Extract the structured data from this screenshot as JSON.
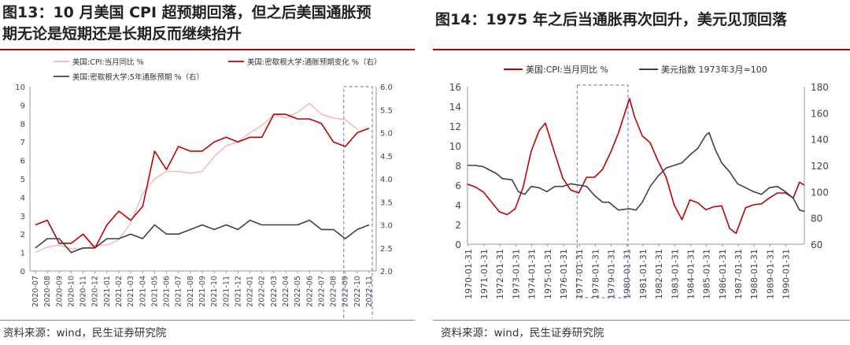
{
  "left": {
    "title_line1": "图13：10 月美国 CPI 超预期回落，但之后美国通胀预",
    "title_line2": "期无论是短期还是长期反而继续抬升",
    "source": "资料来源：wind，民生证券研究院"
  },
  "right": {
    "title": "图14：1975 年之后当通胀再次回升，美元见顶回落",
    "source": "资料来源：wind，民生证券研究院"
  },
  "colors": {
    "title_rule": "#c00000",
    "cpi_light": "#f0b6b8",
    "red_series": "#c00000",
    "dark_series": "#404040",
    "highlight_box": "#6b8fc6"
  },
  "chart_data": [
    {
      "type": "line",
      "categories": [
        "2020-07",
        "2020-08",
        "2020-09",
        "2020-10",
        "2020-11",
        "2020-12",
        "2021-01",
        "2021-02",
        "2021-03",
        "2021-04",
        "2021-05",
        "2021-06",
        "2021-07",
        "2021-08",
        "2021-09",
        "2021-10",
        "2021-11",
        "2021-12",
        "2022-01",
        "2022-02",
        "2022-03",
        "2022-04",
        "2022-05",
        "2022-06",
        "2022-07",
        "2022-08",
        "2022-09",
        "2022-10",
        "2022-11"
      ],
      "xticks": [
        "2020-07",
        "2020-08",
        "2020-09",
        "2020-10",
        "2020-11",
        "2020-12",
        "2021-01",
        "2021-02",
        "2021-03",
        "2021-04",
        "2021-05",
        "2021-06",
        "2021-07",
        "2021-08",
        "2021-09",
        "2021-10",
        "2021-11",
        "2021-12",
        "2022-01",
        "2022-02",
        "2022-03",
        "2022-04",
        "2022-05",
        "2022-06",
        "2022-07",
        "2022-08",
        "2022-09",
        "2022-10",
        "2022-11"
      ],
      "ylim": [
        0,
        10
      ],
      "yticks": [
        0,
        1,
        2,
        3,
        4,
        5,
        6,
        7,
        8,
        9,
        10
      ],
      "ylim_right": [
        2.0,
        6.0
      ],
      "yticks_right": [
        "2.0",
        "2.5",
        "3.0",
        "3.5",
        "4.0",
        "4.5",
        "5.0",
        "5.5",
        "6.0"
      ],
      "series": [
        {
          "name": "美国:CPI:当月同比 %",
          "axis": "left",
          "color": "#f0b6b8",
          "values": [
            1.0,
            1.3,
            1.4,
            1.2,
            1.2,
            1.4,
            1.4,
            1.7,
            2.6,
            4.2,
            5.0,
            5.4,
            5.4,
            5.3,
            5.4,
            6.2,
            6.8,
            7.0,
            7.5,
            7.9,
            8.5,
            8.3,
            8.6,
            9.1,
            8.5,
            8.3,
            8.2,
            7.7,
            null
          ]
        },
        {
          "name": "美国:密歇根大学:通胀预期变化 %（右）",
          "axis": "right",
          "color": "#c00000",
          "values": [
            3.0,
            3.1,
            2.6,
            2.6,
            2.8,
            2.5,
            3.0,
            3.3,
            3.1,
            3.4,
            4.6,
            4.2,
            4.7,
            4.6,
            4.6,
            4.8,
            4.9,
            4.8,
            4.9,
            4.9,
            5.4,
            5.4,
            5.3,
            5.3,
            5.2,
            4.8,
            4.7,
            5.0,
            5.1
          ]
        },
        {
          "name": "美国:密歇根大学:5年通胀预期 %（右）",
          "axis": "right",
          "color": "#404040",
          "values": [
            2.5,
            2.7,
            2.7,
            2.4,
            2.5,
            2.5,
            2.7,
            2.7,
            2.8,
            2.7,
            3.0,
            2.8,
            2.8,
            2.9,
            3.0,
            2.9,
            3.0,
            2.9,
            3.1,
            3.0,
            3.0,
            3.0,
            3.0,
            3.1,
            2.9,
            2.9,
            2.7,
            2.9,
            3.0
          ]
        }
      ],
      "highlight": {
        "from": "2022-09",
        "to": "2022-11"
      }
    },
    {
      "type": "line",
      "xticks": [
        "1970-01-31",
        "1971-01-31",
        "1972-01-31",
        "1973-01-31",
        "1974-01-31",
        "1975-01-31",
        "1976-01-31",
        "1977-01-31",
        "1978-01-31",
        "1979-01-31",
        "1980-01-31",
        "1981-01-31",
        "1982-01-31",
        "1983-01-31",
        "1984-01-31",
        "1985-01-31",
        "1986-01-31",
        "1987-01-31",
        "1988-01-31",
        "1989-01-31",
        "1990-01-31"
      ],
      "xlim": [
        1970.0,
        1991.2
      ],
      "ylim": [
        0,
        16
      ],
      "yticks": [
        0,
        2,
        4,
        6,
        8,
        10,
        12,
        14,
        16
      ],
      "ylim_right": [
        60,
        180
      ],
      "yticks_right": [
        60,
        80,
        100,
        120,
        140,
        160,
        180
      ],
      "series": [
        {
          "name": "美国:CPI:当月同比 %",
          "axis": "left",
          "color": "#c00000",
          "x": [
            1970.0,
            1970.5,
            1971.0,
            1971.5,
            1972.0,
            1972.5,
            1973.0,
            1973.5,
            1974.0,
            1974.5,
            1974.9,
            1975.5,
            1976.0,
            1976.5,
            1977.0,
            1977.5,
            1978.0,
            1978.5,
            1979.0,
            1979.5,
            1980.2,
            1980.5,
            1981.0,
            1981.5,
            1982.0,
            1982.5,
            1983.0,
            1983.5,
            1984.0,
            1984.5,
            1985.0,
            1985.5,
            1986.0,
            1986.5,
            1986.9,
            1987.5,
            1988.0,
            1988.5,
            1989.0,
            1989.5,
            1990.0,
            1990.5,
            1990.9,
            1991.2
          ],
          "y": [
            6.1,
            5.8,
            5.3,
            4.3,
            3.3,
            3.0,
            3.6,
            5.8,
            9.4,
            11.5,
            12.3,
            9.2,
            6.7,
            5.5,
            5.2,
            6.8,
            6.8,
            7.6,
            9.3,
            11.3,
            14.8,
            13.0,
            11.0,
            10.3,
            8.4,
            6.8,
            4.0,
            2.5,
            4.5,
            4.2,
            3.5,
            3.8,
            3.9,
            1.6,
            1.1,
            3.7,
            4.0,
            4.1,
            4.7,
            5.2,
            5.2,
            4.7,
            6.3,
            6.0
          ]
        },
        {
          "name": "美元指数 1973年3月=100",
          "axis": "right",
          "color": "#404040",
          "x": [
            1970.0,
            1970.5,
            1971.0,
            1971.3,
            1971.8,
            1972.2,
            1972.8,
            1973.2,
            1973.6,
            1974.0,
            1974.5,
            1975.0,
            1975.5,
            1976.0,
            1976.5,
            1977.0,
            1977.5,
            1978.0,
            1978.5,
            1978.9,
            1979.5,
            1980.2,
            1980.6,
            1981.0,
            1981.5,
            1982.0,
            1982.5,
            1983.0,
            1983.5,
            1984.0,
            1984.5,
            1985.0,
            1985.2,
            1985.6,
            1986.0,
            1986.5,
            1987.0,
            1987.5,
            1988.0,
            1988.5,
            1989.0,
            1989.5,
            1990.0,
            1990.5,
            1990.9,
            1991.2
          ],
          "y": [
            120,
            120,
            119,
            117,
            114,
            110,
            109,
            100,
            98,
            104,
            103,
            100,
            104,
            104,
            106,
            105,
            104,
            97,
            92,
            92,
            86,
            87,
            86,
            92,
            104,
            112,
            118,
            120,
            122,
            128,
            133,
            143,
            145,
            132,
            122,
            115,
            106,
            103,
            100,
            98,
            103,
            104,
            100,
            95,
            86,
            85
          ]
        }
      ],
      "highlight": {
        "from": 1977.0,
        "to": 1980.0
      }
    }
  ]
}
